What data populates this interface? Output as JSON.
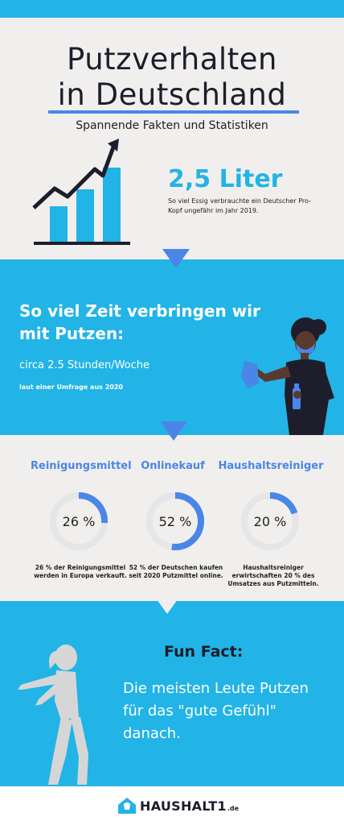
{
  "header": {
    "title_line1": "Putzverhalten",
    "title_line2": "in Deutschland",
    "subtitle": "Spannende Fakten und Statistiken"
  },
  "stat_vinegar": {
    "value": "2,5 Liter",
    "description": "So viel Essig verbrauchte ein Deutscher Pro-Kopf ungefähr im Jahr 2019."
  },
  "time_section": {
    "heading": "So viel Zeit verbringen wir mit Putzen:",
    "value": "circa 2.5 Stunden/Woche",
    "source": "laut einer Umfrage aus 2020"
  },
  "stats": [
    {
      "label": "Reinigungsmittel",
      "value_text": "26 %",
      "fraction": 0.26,
      "description": "26 % der Reinigungsmittel werden in Europa verkauft."
    },
    {
      "label": "Onlinekauf",
      "value_text": "52 %",
      "fraction": 0.52,
      "description": "52 % der Deutschen kaufen seit 2020 Putzmittel online."
    },
    {
      "label": "Haushaltsreiniger",
      "value_text": "20 %",
      "fraction": 0.2,
      "description": "Haushaltsreiniger erwirtschaften 20 % des Umsatzes aus Putzmitteln."
    }
  ],
  "fun_fact": {
    "title": "Fun Fact:",
    "text": "Die meisten Leute Putzen für das \"gute Gefühl\" danach."
  },
  "footer": {
    "logo_text": "HAUSHALT1",
    "logo_tld": ".de"
  },
  "colors": {
    "accent_cyan": "#22b4e6",
    "accent_blue": "#4a86e8",
    "background_light": "#f1efed",
    "text_dark": "#1d1d2b",
    "donut_track": "#e6e6e6"
  },
  "icons": {
    "growth_chart": "bar-chart-growth-icon",
    "person_cleaning": "woman-cleaning-illustration",
    "dancing_silhouette": "dancing-woman-silhouette",
    "logo_house": "house-logo-icon"
  }
}
